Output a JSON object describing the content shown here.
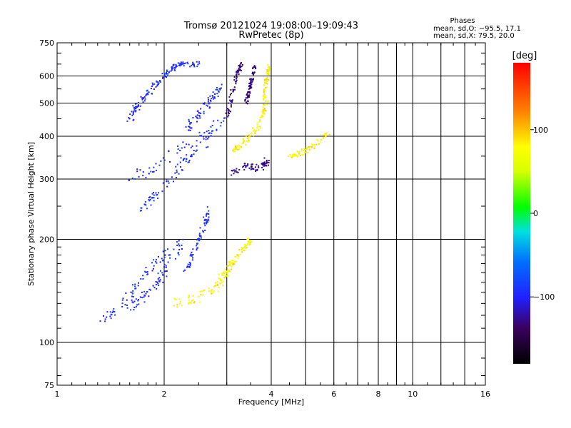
{
  "chart_data": {
    "type": "scatter",
    "title": "Tromsø 20121024 19:08:00–19:09:43",
    "subtitle": "RwPretec (8p)",
    "xlabel": "Frequency [MHz]",
    "ylabel": "Stationary phase Virtual Height [km]",
    "x_scale": "log",
    "y_scale": "log",
    "xlim": [
      1,
      16
    ],
    "ylim": [
      75,
      750
    ],
    "x_ticks": [
      1,
      2,
      4,
      6,
      8,
      10,
      16
    ],
    "x_ticks_labels": [
      "1",
      "2",
      "4",
      "6",
      "8",
      "10",
      "16"
    ],
    "x_minor_ticks": [
      3,
      5,
      7,
      9,
      12,
      14
    ],
    "y_ticks": [
      75,
      100,
      200,
      300,
      400,
      500,
      600,
      750
    ],
    "y_ticks_labels": [
      "75",
      "100",
      "200",
      "300",
      "400",
      "500",
      "600",
      "750"
    ],
    "grid": true,
    "stats": {
      "heading": "Phases",
      "line_o": "mean, sd,O: −95.5, 17.1",
      "line_x": "mean, sd,X:  79.5, 20.0"
    },
    "colorbar": {
      "label": "[deg]",
      "range": [
        -180,
        180
      ],
      "ticks": [
        100,
        0,
        -100
      ],
      "ticks_labels": [
        "100",
        "0",
        "−100"
      ]
    },
    "series": [
      {
        "mode": "O",
        "phase_mean": -95.5,
        "phase_sd": 17.1,
        "traces": [
          {
            "f": [
              1.7,
              1.9,
              2.3,
              2.75
            ],
            "h": [
              240,
              270,
              340,
              400
            ],
            "width": 0.05
          },
          {
            "f": [
              1.6,
              1.85,
              2.2,
              2.6,
              2.95
            ],
            "h": [
              300,
              320,
              360,
              400,
              450
            ],
            "width": 0.06
          },
          {
            "f": [
              1.6,
              1.75,
              1.95
            ],
            "h": [
              450,
              520,
              580
            ],
            "width": 0.04
          },
          {
            "f": [
              2.0,
              2.1,
              2.25,
              2.5
            ],
            "h": [
              600,
              630,
              650,
              650
            ],
            "width": 0.03
          },
          {
            "f": [
              2.3,
              2.55,
              2.9
            ],
            "h": [
              420,
              470,
              560
            ],
            "width": 0.04
          },
          {
            "f": [
              1.3,
              1.5,
              1.7,
              1.9,
              2.1
            ],
            "h": [
              115,
              125,
              150,
              170,
              185
            ],
            "width": 0.05
          },
          {
            "f": [
              1.6,
              1.8,
              2.0,
              2.25
            ],
            "h": [
              125,
              140,
              160,
              200
            ],
            "width": 0.05
          },
          {
            "f": [
              2.3,
              2.5,
              2.7
            ],
            "h": [
              160,
              200,
              250
            ],
            "width": 0.03
          }
        ]
      },
      {
        "mode": "O-violet",
        "phase_mean": -130,
        "traces": [
          {
            "f": [
              3.0,
              3.1,
              3.2,
              3.3
            ],
            "h": [
              450,
              530,
              600,
              650
            ],
            "width": 0.025
          },
          {
            "f": [
              3.1,
              3.4,
              3.7,
              3.9
            ],
            "h": [
              310,
              330,
              320,
              340
            ],
            "width": 0.04
          },
          {
            "f": [
              3.4,
              3.5,
              3.6
            ],
            "h": [
              500,
              570,
              640
            ],
            "width": 0.02
          }
        ]
      },
      {
        "mode": "X",
        "phase_mean": 79.5,
        "phase_sd": 20.0,
        "traces": [
          {
            "f": [
              3.1,
              3.4,
              3.7,
              3.9
            ],
            "h": [
              360,
              390,
              430,
              520
            ],
            "width": 0.035
          },
          {
            "f": [
              3.8,
              3.85,
              3.95
            ],
            "h": [
              460,
              560,
              640
            ],
            "width": 0.02
          },
          {
            "f": [
              4.5,
              4.9,
              5.3,
              5.8
            ],
            "h": [
              350,
              360,
              375,
              410
            ],
            "width": 0.03
          },
          {
            "f": [
              2.15,
              2.5,
              2.8,
              3.1
            ],
            "h": [
              130,
              135,
              145,
              175
            ],
            "width": 0.05
          },
          {
            "f": [
              2.9,
              3.1,
              3.3,
              3.5
            ],
            "h": [
              150,
              170,
              185,
              200
            ],
            "width": 0.03
          }
        ]
      }
    ]
  }
}
